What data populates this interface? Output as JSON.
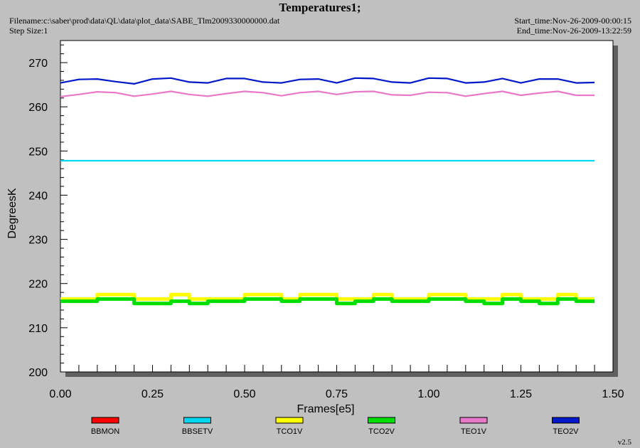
{
  "header": {
    "filename": "Filename:c:\\saber\\prod\\data\\QL\\data\\plot_data\\SABE_Tlm2009330000000.dat",
    "step_size": "Step Size:1",
    "start_time": "Start_time:Nov-26-2009-00:00:15",
    "end_time": "End_time:Nov-26-2009-13:22:59"
  },
  "footer": {
    "version": "v2.5"
  },
  "colors": {
    "background": "#c0c0c0",
    "plot_bg": "#ffffff",
    "shadow": "#606060"
  },
  "chart_data": {
    "type": "line",
    "title": "Temperatures1;",
    "xlabel": "Frames[e5]",
    "ylabel": "DegreesK",
    "xlim": [
      0.0,
      1.5
    ],
    "ylim": [
      200,
      275
    ],
    "xticks": [
      "0.00",
      "0.25",
      "0.50",
      "0.75",
      "1.00",
      "1.25",
      "1.50"
    ],
    "yticks": [
      "200",
      "210",
      "220",
      "230",
      "240",
      "250",
      "260",
      "270"
    ],
    "grid": false,
    "legend_position": "bottom",
    "series": [
      {
        "name": "BBMON",
        "color": "#ff0000",
        "x": [],
        "y": []
      },
      {
        "name": "BBSETV",
        "color": "#00d8f0",
        "x": [
          0.0,
          0.25,
          0.5,
          0.75,
          1.0,
          1.25,
          1.45
        ],
        "y": [
          247.8,
          247.8,
          247.8,
          247.8,
          247.8,
          247.8,
          247.8
        ]
      },
      {
        "name": "TCO1V",
        "color": "#ffff00",
        "x": [
          0.0,
          0.05,
          0.1,
          0.15,
          0.2,
          0.25,
          0.3,
          0.35,
          0.4,
          0.45,
          0.5,
          0.55,
          0.6,
          0.65,
          0.7,
          0.75,
          0.8,
          0.85,
          0.9,
          0.95,
          1.0,
          1.05,
          1.1,
          1.15,
          1.2,
          1.25,
          1.3,
          1.35,
          1.4,
          1.45
        ],
        "y": [
          216.5,
          216.5,
          217.5,
          217.5,
          216.5,
          216.5,
          217.5,
          216.5,
          216.5,
          216.5,
          217.5,
          217.5,
          216.5,
          217.5,
          217.5,
          216.5,
          216.5,
          217.5,
          216.5,
          216.5,
          217.5,
          217.5,
          216.5,
          216.5,
          217.5,
          216.5,
          216.5,
          217.5,
          216.5,
          216.5
        ]
      },
      {
        "name": "TCO2V",
        "color": "#00dd00",
        "x": [
          0.0,
          0.05,
          0.1,
          0.15,
          0.2,
          0.25,
          0.3,
          0.35,
          0.4,
          0.45,
          0.5,
          0.55,
          0.6,
          0.65,
          0.7,
          0.75,
          0.8,
          0.85,
          0.9,
          0.95,
          1.0,
          1.05,
          1.1,
          1.15,
          1.2,
          1.25,
          1.3,
          1.35,
          1.4,
          1.45
        ],
        "y": [
          216.0,
          216.0,
          216.5,
          216.5,
          215.5,
          215.5,
          216.0,
          215.5,
          216.0,
          216.0,
          216.5,
          216.5,
          216.0,
          216.5,
          216.5,
          215.5,
          216.0,
          216.5,
          216.0,
          216.0,
          216.5,
          216.5,
          216.0,
          215.5,
          216.5,
          216.0,
          215.5,
          216.5,
          216.0,
          216.0
        ]
      },
      {
        "name": "TEO1V",
        "color": "#e878c8",
        "x": [
          0.0,
          0.05,
          0.1,
          0.15,
          0.2,
          0.25,
          0.3,
          0.35,
          0.4,
          0.45,
          0.5,
          0.55,
          0.6,
          0.65,
          0.7,
          0.75,
          0.8,
          0.85,
          0.9,
          0.95,
          1.0,
          1.05,
          1.1,
          1.15,
          1.2,
          1.25,
          1.3,
          1.35,
          1.4,
          1.45
        ],
        "y": [
          262.3,
          262.8,
          263.4,
          263.2,
          262.4,
          262.9,
          263.5,
          262.8,
          262.4,
          263.0,
          263.5,
          263.2,
          262.5,
          263.2,
          263.5,
          262.8,
          263.4,
          263.5,
          262.7,
          262.6,
          263.3,
          263.2,
          262.4,
          263.0,
          263.5,
          262.6,
          263.1,
          263.5,
          262.6,
          262.6
        ]
      },
      {
        "name": "TEO2V",
        "color": "#0018c8",
        "x": [
          0.0,
          0.05,
          0.1,
          0.15,
          0.2,
          0.25,
          0.3,
          0.35,
          0.4,
          0.45,
          0.5,
          0.55,
          0.6,
          0.65,
          0.7,
          0.75,
          0.8,
          0.85,
          0.9,
          0.95,
          1.0,
          1.05,
          1.1,
          1.15,
          1.2,
          1.25,
          1.3,
          1.35,
          1.4,
          1.45
        ],
        "y": [
          265.4,
          266.2,
          266.3,
          265.7,
          265.2,
          266.3,
          266.5,
          265.6,
          265.4,
          266.4,
          266.4,
          265.6,
          265.4,
          266.2,
          266.3,
          265.4,
          266.5,
          266.4,
          265.6,
          265.4,
          266.5,
          266.4,
          265.4,
          265.6,
          266.4,
          265.4,
          266.3,
          266.3,
          265.4,
          265.5
        ]
      }
    ]
  }
}
